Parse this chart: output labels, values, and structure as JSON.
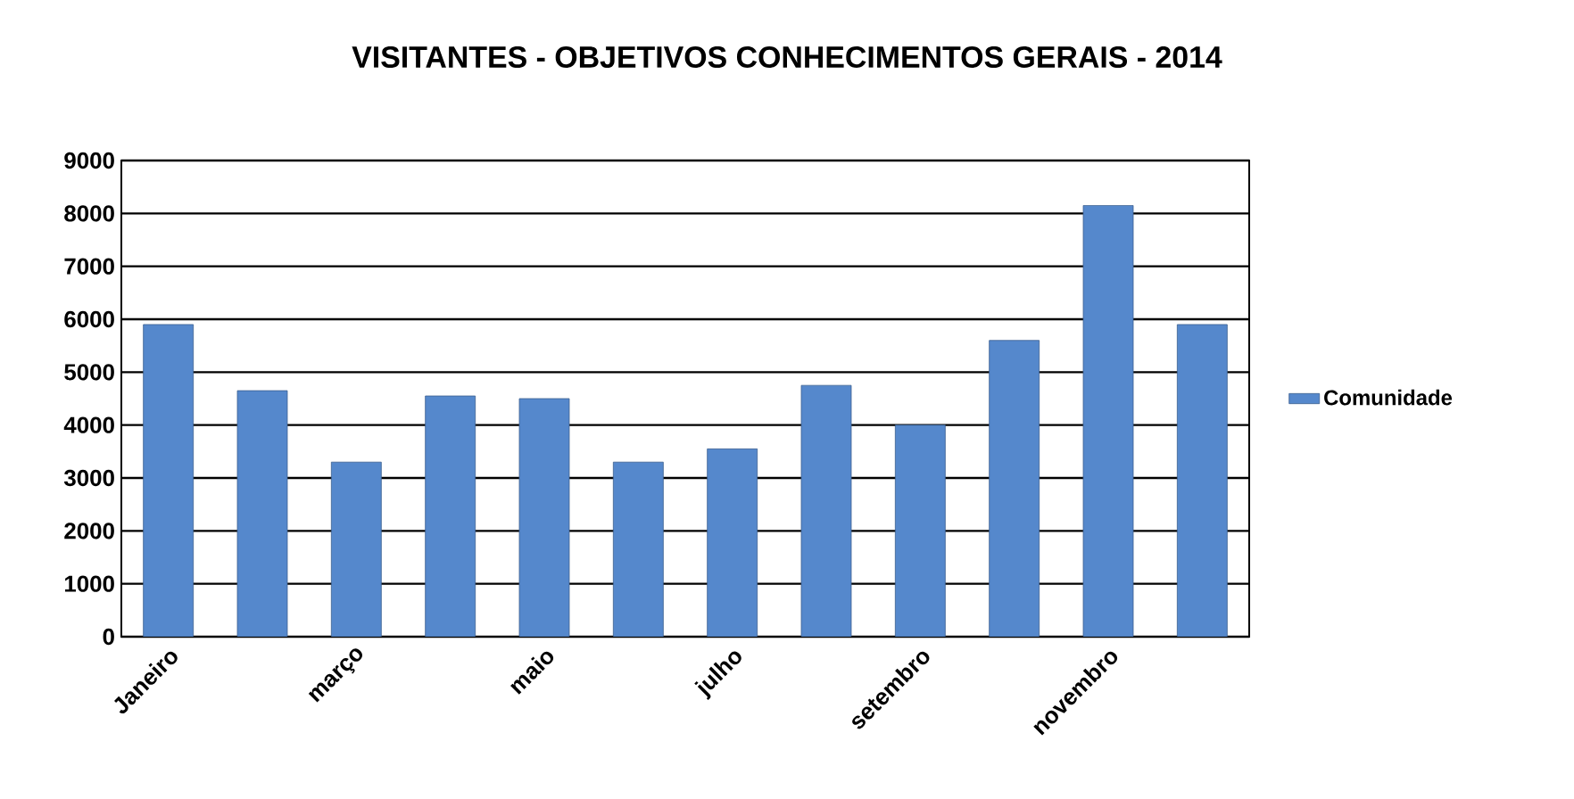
{
  "chart_data": {
    "type": "bar",
    "title": "VISITANTES - OBJETIVOS CONHECIMENTOS GERAIS - 2014",
    "categories": [
      "Janeiro",
      null,
      "março",
      null,
      "maio",
      null,
      "julho",
      null,
      "setembro",
      null,
      "novembro",
      null
    ],
    "series": [
      {
        "name": "Comunidade",
        "color": "#5588cc",
        "values": [
          5900,
          4650,
          3300,
          4550,
          4500,
          3300,
          3550,
          4750,
          4000,
          5600,
          8150,
          5900
        ]
      }
    ],
    "ylim": [
      0,
      9000
    ],
    "yticks": [
      0,
      1000,
      2000,
      3000,
      4000,
      5000,
      6000,
      7000,
      8000,
      9000
    ],
    "grid": "y",
    "legend": "right"
  }
}
